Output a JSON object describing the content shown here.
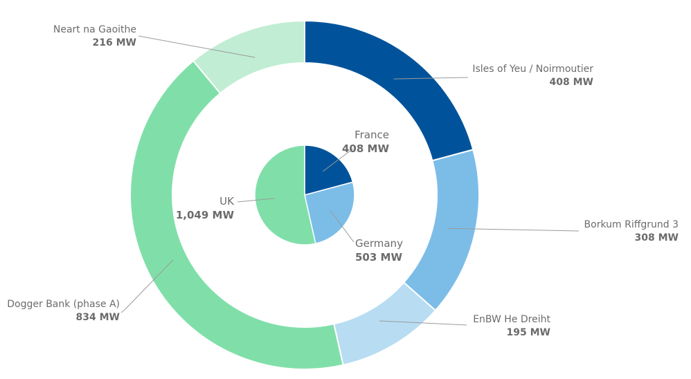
{
  "chart_data": {
    "type": "pie",
    "title": "",
    "rings": [
      {
        "name": "",
        "kind": "donut-outer",
        "slices": [
          {
            "label": "Isles of Yeu / Noirmoutier",
            "value": 408,
            "value_label": "408 MW",
            "color": "#00539b"
          },
          {
            "label": "Borkum Riffgrund 3",
            "value": 308,
            "value_label": "308 MW",
            "color": "#7cbde8"
          },
          {
            "label": "EnBW He Dreiht",
            "value": 195,
            "value_label": "195 MW",
            "color": "#b8dcf2"
          },
          {
            "label": "Dogger Bank (phase A)",
            "value": 834,
            "value_label": "834 MW",
            "color": "#80dfa9"
          },
          {
            "label": "Neart na Gaoithe",
            "value": 216,
            "value_label": "216 MW",
            "color": "#c0edd3"
          }
        ]
      },
      {
        "name": "",
        "kind": "pie-inner",
        "slices": [
          {
            "label": "France",
            "value": 408,
            "value_label": "408 MW",
            "color": "#00539b"
          },
          {
            "label": "Germany",
            "value": 503,
            "value_label": "503 MW",
            "color": "#7cbde8"
          },
          {
            "label": "UK",
            "value": 1049,
            "value_label": "1,049 MW",
            "color": "#80dfa9"
          }
        ]
      }
    ]
  }
}
